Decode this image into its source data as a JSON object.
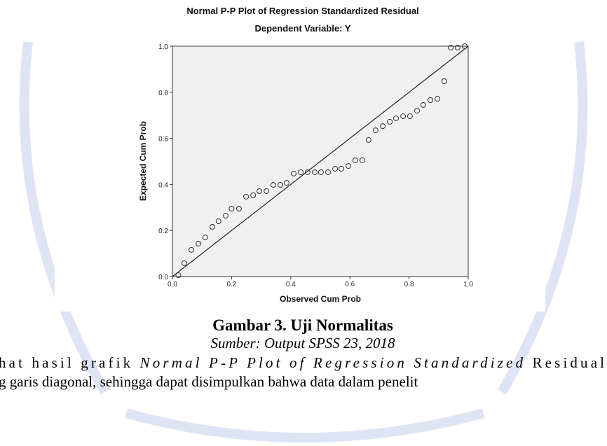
{
  "chart_data": {
    "type": "scatter",
    "title": "Normal P-P Plot of Regression Standardized Residual",
    "subtitle": "Dependent Variable: Y",
    "x_label": "Observed Cum Prob",
    "y_label": "Expected Cum Prob",
    "x": [
      0.02,
      0.04,
      0.064,
      0.088,
      0.111,
      0.135,
      0.156,
      0.18,
      0.2,
      0.225,
      0.249,
      0.273,
      0.294,
      0.318,
      0.341,
      0.365,
      0.386,
      0.41,
      0.434,
      0.457,
      0.481,
      0.502,
      0.526,
      0.55,
      0.571,
      0.595,
      0.618,
      0.642,
      0.663,
      0.687,
      0.711,
      0.735,
      0.756,
      0.78,
      0.803,
      0.827,
      0.848,
      0.872,
      0.896,
      0.919,
      0.941,
      0.964,
      0.988
    ],
    "values": [
      0.006,
      0.058,
      0.116,
      0.143,
      0.17,
      0.216,
      0.24,
      0.264,
      0.295,
      0.295,
      0.347,
      0.353,
      0.371,
      0.371,
      0.398,
      0.398,
      0.407,
      0.447,
      0.453,
      0.453,
      0.453,
      0.453,
      0.453,
      0.468,
      0.468,
      0.48,
      0.505,
      0.505,
      0.593,
      0.635,
      0.653,
      0.672,
      0.687,
      0.696,
      0.696,
      0.72,
      0.745,
      0.766,
      0.772,
      0.848,
      0.994,
      0.994,
      1.0
    ],
    "xlim": [
      0,
      1
    ],
    "ylim": [
      0,
      1
    ],
    "xticks": [
      {
        "value": 0,
        "label": "0.0"
      },
      0.2,
      0.4,
      0.6,
      0.8,
      {
        "value": 1,
        "label": "1.0"
      }
    ],
    "yticks": [
      {
        "value": 0,
        "label": "0.0"
      },
      0.2,
      0.4,
      0.6,
      0.8,
      {
        "value": 1,
        "label": "1.0"
      }
    ],
    "color": "#333333",
    "background": "#f0f0f0",
    "reference_line": true
  },
  "document": {
    "caption": "Gambar 3. Uji Normalitas",
    "source": "Sumber: Output SPSS 23, 2018",
    "lines": [
      [
        {
          "text": "hat hasil grafik ",
          "italic": false
        },
        {
          "text": "Normal P-P Plot of Regression Standardized",
          "italic": true
        },
        {
          "text": " Residual",
          "italic": false
        }
      ],
      [
        {
          "text": "g garis diagonal, sehingga dapat disimpulkan bahwa data dalam penelit",
          "italic": false
        }
      ]
    ]
  }
}
